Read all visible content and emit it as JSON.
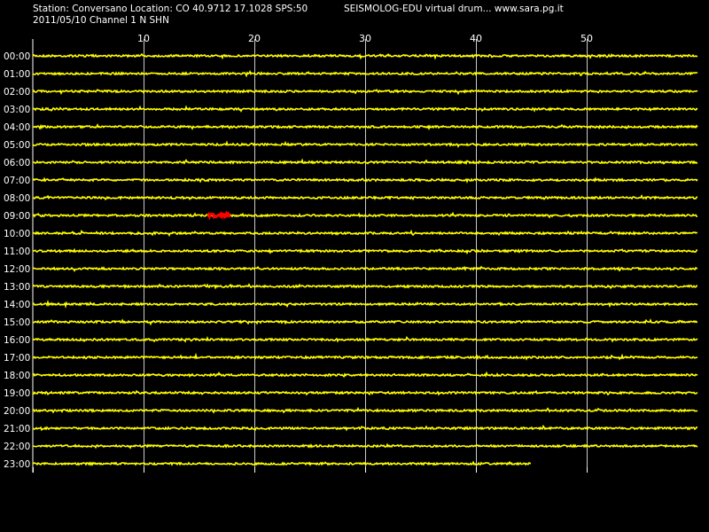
{
  "header": {
    "station_line": "Station: Conversano Location: CO 40.9712 17.1028 SPS:50",
    "app_line": "SEISMOLOG-EDU virtual drum... www.sara.pg.it",
    "date_line": "2011/05/10  Channel 1 N SHN"
  },
  "colors": {
    "background": "#000000",
    "trace": "#ffff00",
    "event": "#ff0000",
    "grid": "#ffffff",
    "text": "#ffffff"
  },
  "chart_data": {
    "type": "line",
    "title": "",
    "xlabel": "",
    "ylabel": "",
    "x_unit": "minutes",
    "xlim": [
      0,
      60
    ],
    "x_ticks": [
      10,
      20,
      30,
      40,
      50
    ],
    "grid": true,
    "rows": [
      "00:00",
      "01:00",
      "02:00",
      "03:00",
      "04:00",
      "05:00",
      "06:00",
      "07:00",
      "08:00",
      "09:00",
      "10:00",
      "11:00",
      "12:00",
      "13:00",
      "14:00",
      "15:00",
      "16:00",
      "17:00",
      "18:00",
      "19:00",
      "20:00",
      "21:00",
      "22:00",
      "23:00"
    ],
    "last_row_end_minute": 45,
    "events": [
      {
        "row": "09:00",
        "start_minute": 15.8,
        "end_minute": 17.8
      }
    ]
  }
}
